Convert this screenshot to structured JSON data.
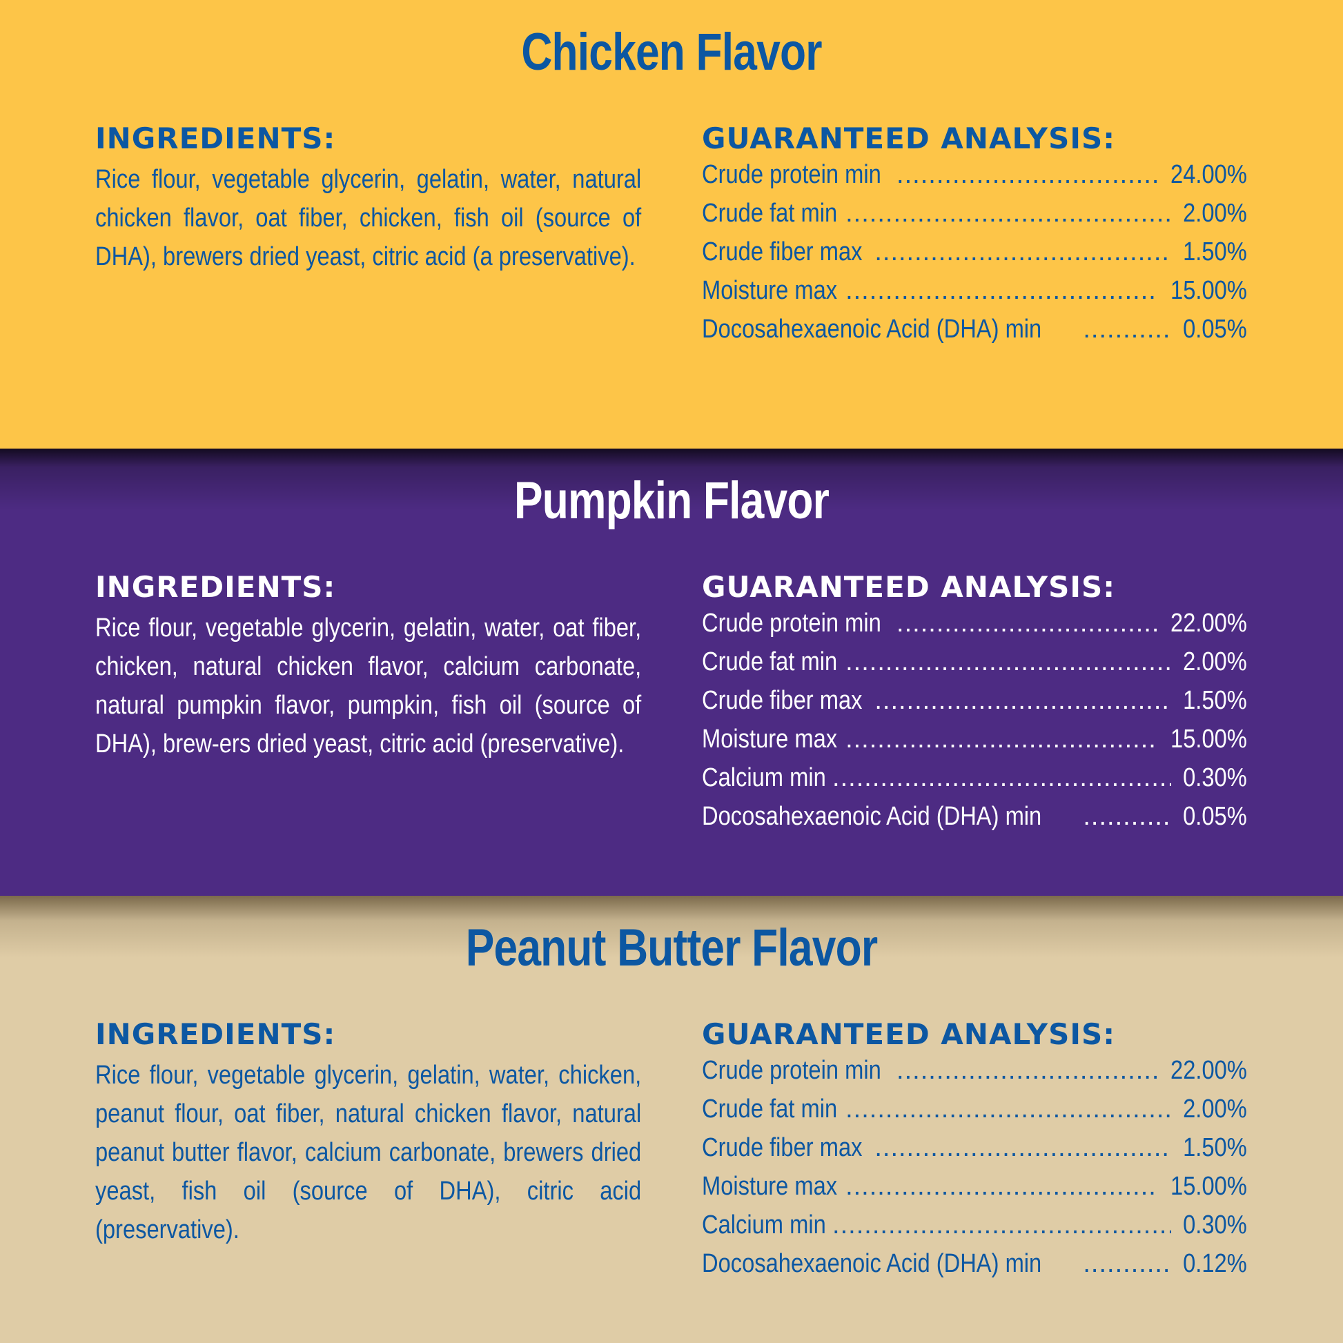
{
  "colors": {
    "chicken_bg": "#fdc548",
    "pumpkin_bg": "#4d2b83",
    "peanut_bg": "#dfcca6",
    "blue_text": "#0c57a2",
    "white_text": "#ffffff"
  },
  "sections": [
    {
      "title": "Chicken Flavor",
      "ingredients_heading": "INGREDIENTS:",
      "ingredients": "Rice flour, vegetable glycerin, gelatin, water, natural chicken flavor, oat fiber, chicken, fish oil (source of DHA), brewers dried yeast, citric acid (a preservative).",
      "analysis_heading": "GUARANTEED ANALYSIS:",
      "analysis": [
        {
          "label": "Crude protein min",
          "value": "24.00%"
        },
        {
          "label": "Crude fat min",
          "value": "2.00%"
        },
        {
          "label": "Crude fiber max",
          "value": "1.50%"
        },
        {
          "label": "Moisture max",
          "value": "15.00%"
        },
        {
          "label": "Docosahexaenoic Acid (DHA) min",
          "value": "0.05%"
        }
      ]
    },
    {
      "title": "Pumpkin Flavor",
      "ingredients_heading": "INGREDIENTS:",
      "ingredients": "Rice flour, vegetable glycerin, gelatin, water, oat fiber, chicken, natural chicken flavor, calcium carbonate, natural pumpkin flavor, pumpkin, fish oil (source of DHA), brew-ers dried yeast, citric acid (preservative).",
      "analysis_heading": "GUARANTEED ANALYSIS:",
      "analysis": [
        {
          "label": "Crude protein min",
          "value": "22.00%"
        },
        {
          "label": "Crude fat min",
          "value": "2.00%"
        },
        {
          "label": "Crude fiber max",
          "value": "1.50%"
        },
        {
          "label": "Moisture max",
          "value": "15.00%"
        },
        {
          "label": "Calcium min",
          "value": "0.30%"
        },
        {
          "label": "Docosahexaenoic Acid (DHA) min",
          "value": "0.05%"
        }
      ]
    },
    {
      "title": "Peanut Butter Flavor",
      "ingredients_heading": "INGREDIENTS:",
      "ingredients": "Rice flour, vegetable glycerin, gelatin, water, chicken, peanut flour, oat fiber, natural chicken flavor, natural peanut butter flavor, calcium carbonate, brewers dried yeast, fish oil (source of DHA), citric acid (preservative).",
      "analysis_heading": "GUARANTEED ANALYSIS:",
      "analysis": [
        {
          "label": "Crude protein min",
          "value": "22.00%"
        },
        {
          "label": "Crude fat min",
          "value": "2.00%"
        },
        {
          "label": "Crude fiber max",
          "value": "1.50%"
        },
        {
          "label": "Moisture max",
          "value": "15.00%"
        },
        {
          "label": "Calcium min",
          "value": "0.30%"
        },
        {
          "label": "Docosahexaenoic Acid (DHA) min",
          "value": "0.12%"
        }
      ]
    }
  ]
}
